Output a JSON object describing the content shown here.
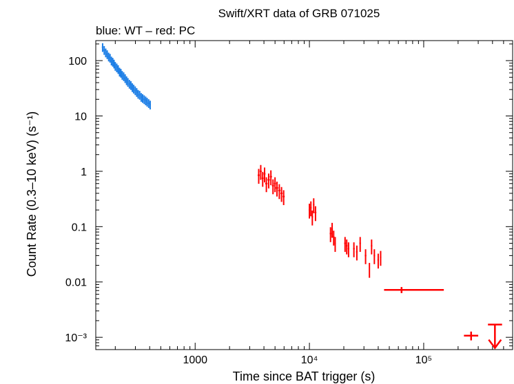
{
  "chart_data": {
    "type": "scatter",
    "title": "Swift/XRT data of GRB 071025",
    "subtitle": "blue: WT – red: PC",
    "xlabel": "Time since BAT trigger (s)",
    "ylabel": "Count Rate (0.3–10 keV) (s⁻¹)",
    "xscale": "log",
    "yscale": "log",
    "xlim": [
      135,
      600000
    ],
    "ylim": [
      0.0006,
      230
    ],
    "x_ticks": [
      {
        "value": 1000,
        "label": "1000"
      },
      {
        "value": 10000,
        "label": "10⁴"
      },
      {
        "value": 100000,
        "label": "10⁵"
      }
    ],
    "y_ticks": [
      {
        "value": 100,
        "label": "100"
      },
      {
        "value": 10,
        "label": "10"
      },
      {
        "value": 1,
        "label": "1"
      },
      {
        "value": 0.1,
        "label": "0.1"
      },
      {
        "value": 0.01,
        "label": "0.01"
      },
      {
        "value": 0.001,
        "label": "10⁻³"
      }
    ],
    "grid": false,
    "series": [
      {
        "name": "WT",
        "color": "#1e7fe6",
        "x": [
          155,
          160,
          165,
          170,
          175,
          180,
          185,
          190,
          195,
          200,
          206,
          212,
          218,
          224,
          230,
          237,
          244,
          251,
          258,
          266,
          274,
          282,
          290,
          299,
          308,
          317,
          327,
          337,
          347,
          358,
          369,
          380,
          392,
          404
        ],
        "y": [
          175,
          155,
          140,
          130,
          118,
          112,
          100,
          95,
          88,
          80,
          75,
          70,
          63,
          60,
          55,
          52,
          48,
          44,
          41,
          38,
          36,
          33,
          31,
          29,
          27,
          25,
          24,
          22,
          21,
          20,
          19,
          18,
          17,
          16
        ],
        "xerr": [
          2.5,
          2.5,
          2.5,
          2.5,
          2.5,
          2.5,
          2.5,
          2.5,
          2.5,
          2.5,
          3,
          3,
          3,
          3,
          3,
          3.5,
          3.5,
          3.5,
          3.5,
          4,
          4,
          4,
          4,
          4.5,
          4.5,
          4.5,
          5,
          5,
          5,
          5.5,
          5.5,
          5.5,
          6,
          6
        ],
        "yerr_frac": 0.18
      },
      {
        "name": "PC",
        "color": "#ff0000",
        "x": [
          3600,
          3750,
          3900,
          4050,
          4200,
          4400,
          4600,
          4800,
          5000,
          5200,
          5450,
          5700,
          5950,
          10000,
          10300,
          10600,
          10900,
          11300,
          15300,
          15800,
          16300,
          16800,
          20500,
          21200,
          22000,
          24500,
          26000,
          27800,
          31000,
          33500,
          35000,
          37000,
          40000,
          42000
        ],
        "y": [
          0.85,
          1.0,
          0.75,
          0.9,
          0.6,
          0.7,
          0.8,
          0.55,
          0.6,
          0.5,
          0.45,
          0.4,
          0.35,
          0.2,
          0.22,
          0.15,
          0.25,
          0.18,
          0.075,
          0.09,
          0.065,
          0.05,
          0.05,
          0.045,
          0.04,
          0.04,
          0.035,
          0.05,
          0.03,
          0.017,
          0.045,
          0.03,
          0.025,
          0.028
        ],
        "xerr": [
          75,
          75,
          75,
          75,
          100,
          100,
          100,
          100,
          100,
          125,
          125,
          125,
          125,
          150,
          150,
          150,
          150,
          200,
          250,
          250,
          250,
          250,
          350,
          350,
          350,
          400,
          400,
          400,
          500,
          250,
          500,
          500,
          600,
          600
        ],
        "yerr_frac": 0.3,
        "extra_points": [
          {
            "x": 64000,
            "y": 0.0072,
            "xlo": 45000,
            "xhi": 150000,
            "ylo": 0.0063,
            "yhi": 0.0081
          },
          {
            "x": 260000,
            "y": 0.00107,
            "xlo": 225000,
            "xhi": 300000,
            "ylo": 0.00088,
            "yhi": 0.00127
          }
        ],
        "upper_limits": [
          {
            "x": 420000,
            "y": 0.0017,
            "xlo": 365000,
            "xhi": 485000
          }
        ]
      }
    ]
  }
}
